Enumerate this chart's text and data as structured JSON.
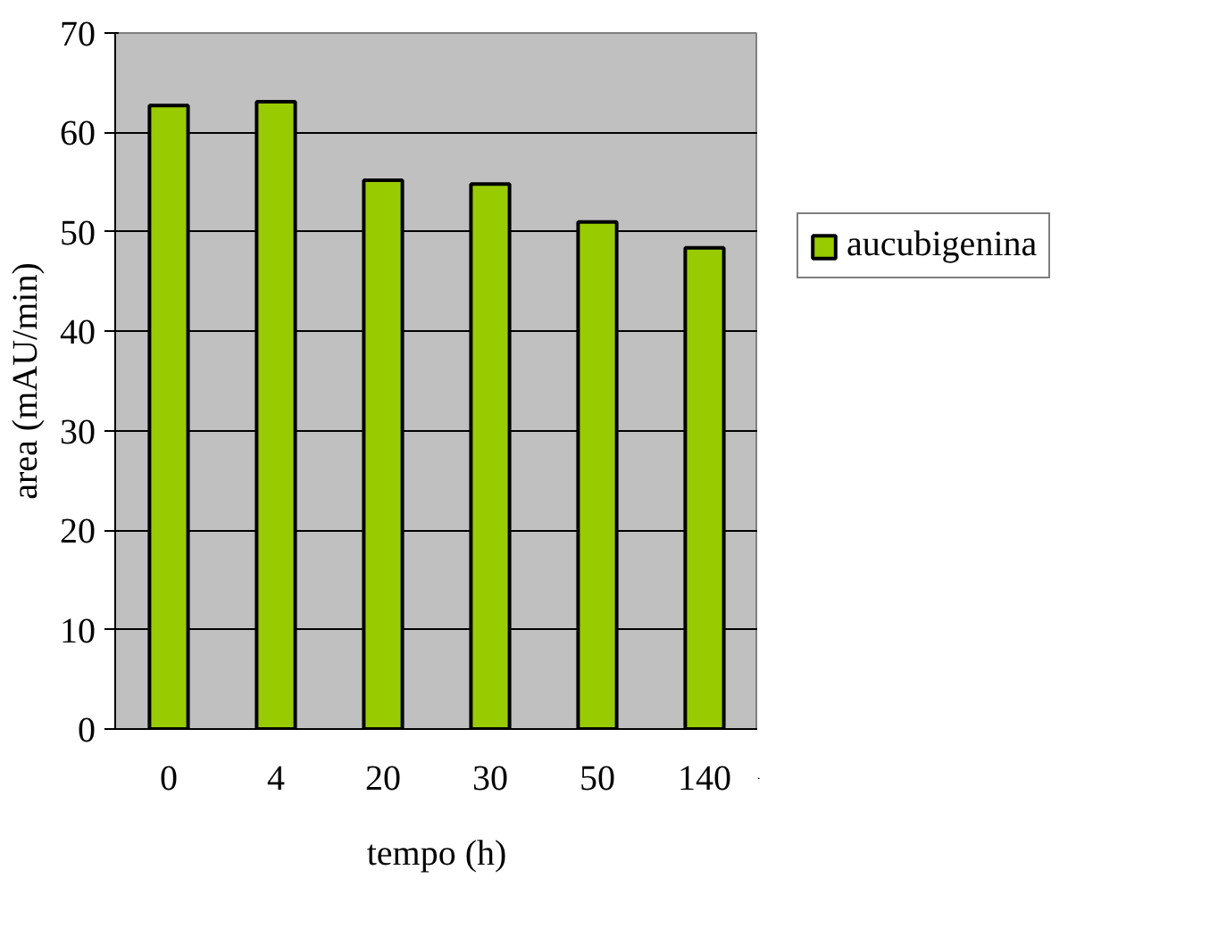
{
  "chart_data": {
    "type": "bar",
    "xlabel": "tempo (h)",
    "ylabel": "area (mAU/min)",
    "categories": [
      "0",
      "4",
      "20",
      "30",
      "50",
      "140"
    ],
    "series": [
      {
        "name": "aucubigenina",
        "color": "#99cc00",
        "values": [
          62.7,
          63.1,
          55.2,
          54.8,
          51.0,
          48.4
        ]
      }
    ],
    "ylim": [
      0,
      70
    ],
    "yticks": [
      0,
      10,
      20,
      30,
      40,
      50,
      60,
      70
    ],
    "grid": "y",
    "legend": "right"
  }
}
